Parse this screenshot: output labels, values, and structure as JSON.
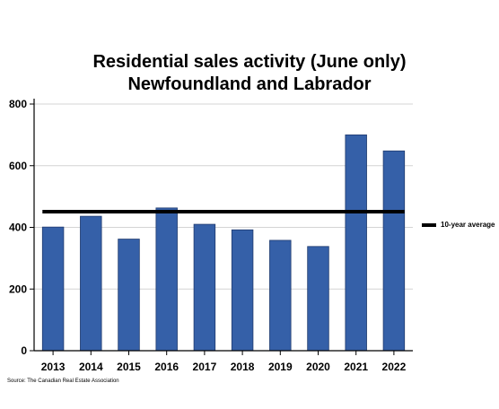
{
  "chart_data": {
    "type": "bar",
    "title": [
      "Residential sales activity (June only)",
      "Newfoundland and Labrador"
    ],
    "categories": [
      "2013",
      "2014",
      "2015",
      "2016",
      "2017",
      "2018",
      "2019",
      "2020",
      "2021",
      "2022"
    ],
    "values": [
      401,
      436,
      362,
      463,
      410,
      392,
      358,
      338,
      700,
      648
    ],
    "reference_line": {
      "name": "10-year average",
      "value": 451
    },
    "ylim": [
      0,
      800
    ],
    "yticks": [
      "0",
      "200",
      "400",
      "600",
      "800"
    ],
    "grid": true,
    "legend": "right",
    "colors": {
      "bar": "#3560a8",
      "bar_edge": "#1f3a6e",
      "average": "#000000",
      "grid": "#d4d4d4"
    }
  },
  "source": "Source: The Canadian Real Estate Association"
}
